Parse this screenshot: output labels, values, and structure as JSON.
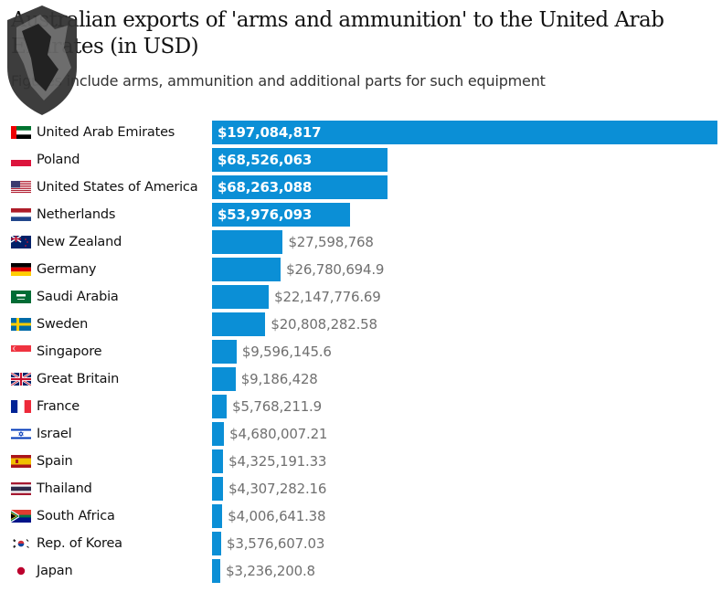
{
  "chart_data": {
    "type": "bar",
    "orientation": "horizontal",
    "title": "Australian exports of 'arms and ammunition' to the United Arab Emirates (in USD)",
    "subtitle": "Figures include arms, ammunition and additional parts for such equipment",
    "categories": [
      "United Arab Emirates",
      "Poland",
      "United States of America",
      "Netherlands",
      "New Zealand",
      "Germany",
      "Saudi Arabia",
      "Sweden",
      "Singapore",
      "Great Britain",
      "France",
      "Israel",
      "Spain",
      "Thailand",
      "South Africa",
      "Rep. of Korea",
      "Japan"
    ],
    "values": [
      197084817,
      68526063,
      68263088,
      53976093,
      27598768,
      26780694.9,
      22147776.69,
      20808282.58,
      9596145.6,
      9186428,
      5768211.9,
      4680007.21,
      4325191.33,
      4307282.16,
      4006641.38,
      3576607.03,
      3236200.8
    ],
    "value_labels": [
      "$197,084,817",
      "$68,526,063",
      "$68,263,088",
      "$53,976,093",
      "$27,598,768",
      "$26,780,694.9",
      "$22,147,776.69",
      "$20,808,282.58",
      "$9,596,145.6",
      "$9,186,428",
      "$5,768,211.9",
      "$4,680,007.21",
      "$4,325,191.33",
      "$4,307,282.16",
      "$4,006,641.38",
      "$3,576,607.03",
      "$3,236,200.8"
    ],
    "flag_icons": [
      "flag-uae-icon",
      "flag-poland-icon",
      "flag-usa-icon",
      "flag-netherlands-icon",
      "flag-new-zealand-icon",
      "flag-germany-icon",
      "flag-saudi-arabia-icon",
      "flag-sweden-icon",
      "flag-singapore-icon",
      "flag-great-britain-icon",
      "flag-france-icon",
      "flag-israel-icon",
      "flag-spain-icon",
      "flag-thailand-icon",
      "flag-south-africa-icon",
      "flag-korea-icon",
      "flag-japan-icon"
    ],
    "xlim": [
      0,
      197084817
    ],
    "grid": false,
    "bar_color": "#0b8fd6"
  },
  "watermark": {
    "type": "shield-lion-logo",
    "color": "#333333"
  }
}
